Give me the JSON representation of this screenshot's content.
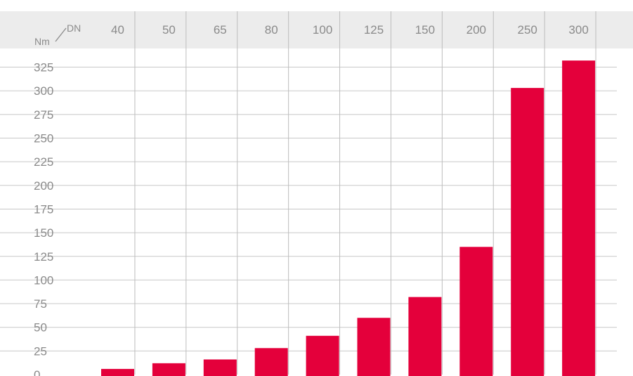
{
  "chart_data": {
    "type": "bar",
    "title": "",
    "xlabel": "DN",
    "ylabel": "Nm",
    "categories": [
      "40",
      "50",
      "65",
      "80",
      "100",
      "125",
      "150",
      "200",
      "250",
      "300"
    ],
    "values": [
      6,
      12,
      16,
      28,
      41,
      60,
      82,
      135,
      303,
      332
    ],
    "y_ticks": [
      "0",
      "25",
      "50",
      "75",
      "100",
      "125",
      "150",
      "175",
      "200",
      "225",
      "250",
      "275",
      "300",
      "325"
    ],
    "ylim": [
      0,
      340
    ],
    "grid": true,
    "legend": "none",
    "colors": {
      "bar": "#e4003b",
      "header_band": "#ececec",
      "grid": "#c8c8c8",
      "text": "#8a8a8a"
    }
  }
}
